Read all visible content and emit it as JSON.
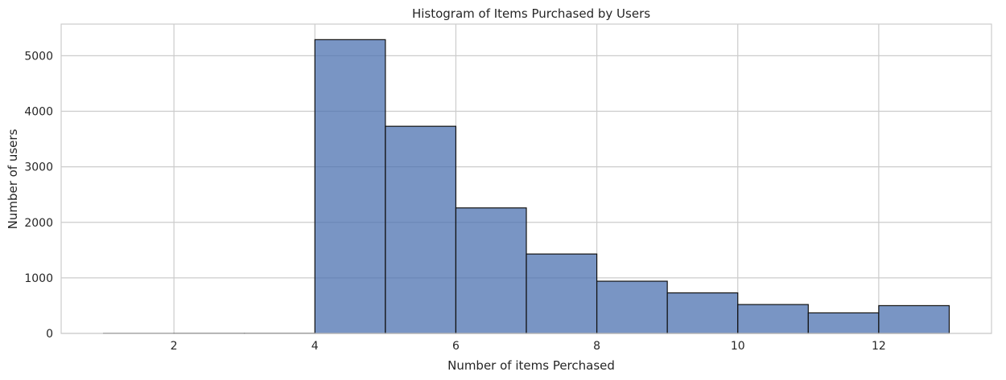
{
  "chart_data": {
    "type": "bar",
    "title": "Histogram of Items Purchased by Users",
    "xlabel": "Number of items Perchased",
    "ylabel": "Number of users",
    "xlim": [
      0.4,
      13.6
    ],
    "ylim": [
      0,
      5570
    ],
    "xticks": [
      2,
      4,
      6,
      8,
      10,
      12
    ],
    "yticks": [
      0,
      1000,
      2000,
      3000,
      4000,
      5000
    ],
    "grid": true,
    "bins": [
      {
        "x0": 1,
        "x1": 2,
        "value": 2
      },
      {
        "x0": 2,
        "x1": 3,
        "value": 3
      },
      {
        "x0": 3,
        "x1": 4,
        "value": 3
      },
      {
        "x0": 4,
        "x1": 5,
        "value": 5290
      },
      {
        "x0": 5,
        "x1": 6,
        "value": 3730
      },
      {
        "x0": 6,
        "x1": 7,
        "value": 2260
      },
      {
        "x0": 7,
        "x1": 8,
        "value": 1430
      },
      {
        "x0": 8,
        "x1": 9,
        "value": 940
      },
      {
        "x0": 9,
        "x1": 10,
        "value": 730
      },
      {
        "x0": 10,
        "x1": 11,
        "value": 520
      },
      {
        "x0": 11,
        "x1": 12,
        "value": 370
      },
      {
        "x0": 12,
        "x1": 13,
        "value": 500
      }
    ],
    "colors": {
      "bar_fill": "#4c72b0",
      "bar_edge": "#111111",
      "grid": "#cccccc",
      "frame": "#cccccc"
    }
  }
}
